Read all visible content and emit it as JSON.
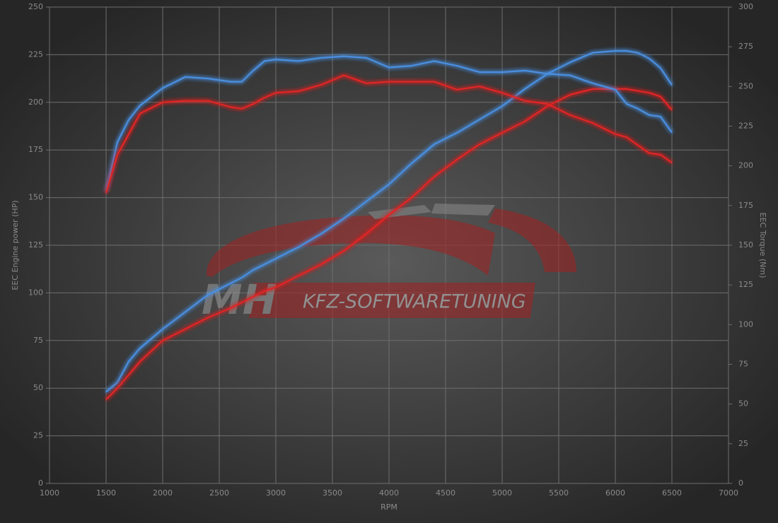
{
  "chart_data": {
    "type": "line",
    "x": [
      1500,
      1600,
      1700,
      1800,
      2000,
      2200,
      2400,
      2600,
      2700,
      2800,
      2900,
      3000,
      3200,
      3400,
      3600,
      3800,
      4000,
      4200,
      4400,
      4600,
      4800,
      5000,
      5200,
      5400,
      5600,
      5800,
      6000,
      6100,
      6200,
      6300,
      6400,
      6500
    ],
    "series": [
      {
        "color": "#4a8fe0",
        "axis": "y",
        "values": [
          48,
          53,
          64,
          71,
          81,
          90,
          99,
          105,
          108,
          112,
          115,
          118,
          124,
          131,
          139,
          148,
          157,
          168,
          178,
          184,
          191,
          198,
          207,
          215,
          221,
          226,
          227,
          227,
          226,
          223,
          218,
          209
        ]
      },
      {
        "color": "#e02828",
        "axis": "y",
        "values": [
          44,
          50,
          57,
          64,
          75,
          81,
          87,
          92,
          95,
          98,
          101,
          103,
          109,
          115,
          122,
          131,
          141,
          150,
          161,
          170,
          178,
          184,
          190,
          198,
          204,
          207,
          207,
          207,
          206,
          205,
          203,
          196
        ]
      },
      {
        "color": "#4a8fe0",
        "axis": "y2",
        "values": [
          184,
          215,
          229,
          238,
          249,
          256,
          255,
          253,
          253,
          260,
          266,
          267,
          266,
          268,
          269,
          268,
          262,
          263,
          266,
          263,
          259,
          259,
          260,
          258,
          257,
          252,
          248,
          239,
          236,
          232,
          231,
          221
        ]
      },
      {
        "color": "#e02828",
        "axis": "y2",
        "values": [
          183,
          207,
          220,
          233,
          240,
          241,
          241,
          237,
          236,
          239,
          243,
          246,
          247,
          251,
          257,
          252,
          253,
          253,
          253,
          248,
          250,
          246,
          241,
          239,
          232,
          227,
          220,
          218,
          213,
          208,
          207,
          202
        ]
      }
    ],
    "xlim": [
      1000,
      7000
    ],
    "xticks": [
      1000,
      1500,
      2000,
      2500,
      3000,
      3500,
      4000,
      4500,
      5000,
      5500,
      6000,
      6500,
      7000
    ],
    "ylim": [
      0,
      250
    ],
    "yticks": [
      0,
      25,
      50,
      75,
      100,
      125,
      150,
      175,
      200,
      225,
      250
    ],
    "y2lim": [
      0,
      300
    ],
    "y2ticks": [
      0,
      25,
      50,
      75,
      100,
      125,
      150,
      175,
      200,
      225,
      250,
      275,
      300
    ],
    "xlabel": "RPM",
    "ylabel": "EEC Engine power (HP)",
    "y2label": "EEC Torque (Nm)",
    "grid": true,
    "watermark": [
      "MH",
      "KFZ-SOFTWARETUNING"
    ]
  }
}
